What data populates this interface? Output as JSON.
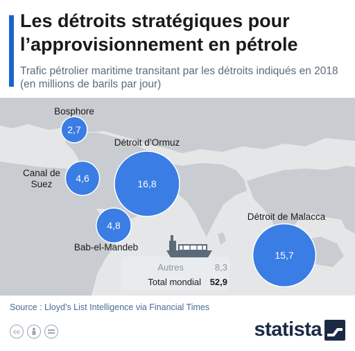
{
  "header": {
    "title": "Les détroits stratégiques pour l’approvisionnement en pétrole",
    "subtitle": "Trafic pétrolier maritime transitant par les détroits indiqués en 2018 (en millions de barils par jour)"
  },
  "chart_data": {
    "type": "bubble-map",
    "unit": "millions de barils par jour",
    "year": "2018",
    "straits": [
      {
        "name": "Bosphore",
        "value": 2.7,
        "value_label": "2,7"
      },
      {
        "name": "Canal de Suez",
        "value": 4.6,
        "value_label": "4,6"
      },
      {
        "name": "Détroit d’Ormuz",
        "value": 16.8,
        "value_label": "16,8"
      },
      {
        "name": "Bab-el-Mandeb",
        "value": 4.8,
        "value_label": "4,8"
      },
      {
        "name": "Détroit de Malacca",
        "value": 15.7,
        "value_label": "15,7"
      }
    ],
    "summary": [
      {
        "label": "Autres",
        "value_label": "8,3"
      },
      {
        "label": "Total mondial",
        "value_label": "52,9"
      }
    ]
  },
  "footer": {
    "source": "Source : Lloyd’s List Intelligence via Financial Times",
    "brand": "statista",
    "licence_icons": [
      "cc-icon",
      "attribution-icon",
      "equals-icon"
    ]
  },
  "colors": {
    "accent": "#1e63c9",
    "bubble": "#3a7de4",
    "bubble_stroke": "#ffffff",
    "map_land": "#c9ccd0",
    "map_sea": "#e5e6e8",
    "label": "#1a1a1a",
    "brand_dark": "#1b2a44"
  }
}
